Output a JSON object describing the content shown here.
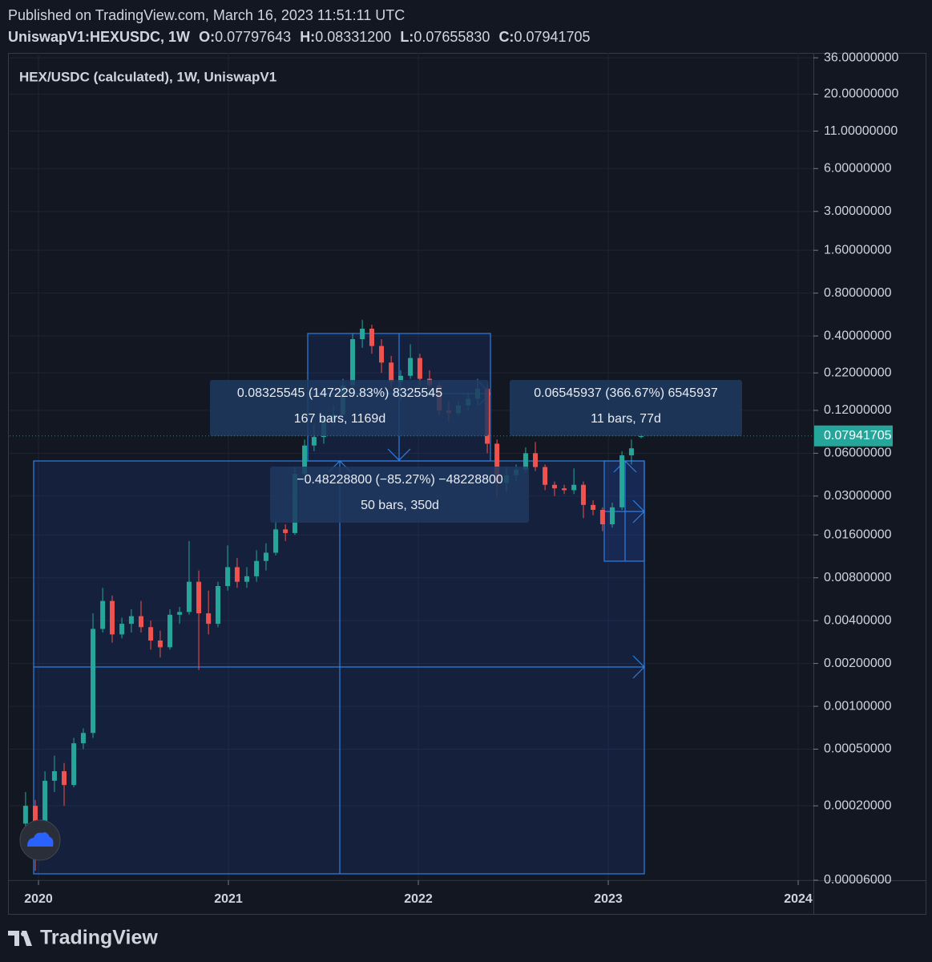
{
  "chart_data": {
    "type": "candlestick",
    "published": "Published on TradingView.com, March 16, 2023 11:51:11 UTC",
    "symbol": "UniswapV1:HEXUSDC, 1W",
    "ohlc": [
      {
        "label": "O:",
        "value": "0.07797643"
      },
      {
        "label": "H:",
        "value": "0.08331200"
      },
      {
        "label": "L:",
        "value": "0.07655830"
      },
      {
        "label": "C:",
        "value": "0.07941705"
      }
    ],
    "title": "HEX/USDC (calculated), 1W, UniswapV1",
    "brand": "TradingView",
    "measures": [
      {
        "line1": "0.08325545 (147229.83%) 8325545",
        "line2": "167 bars, 1169d"
      },
      {
        "line1": "0.06545937 (366.67%) 6545937",
        "line2": "11 bars, 77d"
      },
      {
        "line1": "−0.48228800 (−85.27%) −48228800",
        "line2": "50 bars, 350d"
      }
    ],
    "up_color": "#26a69a",
    "down_color": "#ef5350",
    "log_scale": true,
    "grid": true,
    "last_price": 0.07941705,
    "xlim": [
      2019.848,
      2024.08
    ],
    "xticks": [
      2020,
      2021,
      2022,
      2023,
      2024
    ],
    "ylim": [
      6e-05,
      37
    ],
    "yticks": [
      {
        "value": 36,
        "label": "36.00000000"
      },
      {
        "value": 20,
        "label": "20.00000000"
      },
      {
        "value": 11,
        "label": "11.00000000"
      },
      {
        "value": 6,
        "label": "6.00000000"
      },
      {
        "value": 3,
        "label": "3.00000000"
      },
      {
        "value": 1.6,
        "label": "1.60000000"
      },
      {
        "value": 0.8,
        "label": "0.80000000"
      },
      {
        "value": 0.4,
        "label": "0.40000000"
      },
      {
        "value": 0.22,
        "label": "0.22000000"
      },
      {
        "value": 0.12,
        "label": "0.12000000"
      },
      {
        "value": 0.06,
        "label": "0.06000000"
      },
      {
        "value": 0.03,
        "label": "0.03000000"
      },
      {
        "value": 0.016,
        "label": "0.01600000"
      },
      {
        "value": 0.008,
        "label": "0.00800000"
      },
      {
        "value": 0.004,
        "label": "0.00400000"
      },
      {
        "value": 0.002,
        "label": "0.00200000"
      },
      {
        "value": 0.001,
        "label": "0.00100000"
      },
      {
        "value": 0.0005,
        "label": "0.00050000"
      },
      {
        "value": 0.0002,
        "label": "0.00020000"
      },
      {
        "value": 6e-05,
        "label": "0.00006000"
      }
    ],
    "x": [
      2019.932,
      2019.983,
      2020.034,
      2020.084,
      2020.135,
      2020.186,
      2020.236,
      2020.287,
      2020.338,
      2020.388,
      2020.439,
      2020.489,
      2020.54,
      2020.591,
      2020.641,
      2020.692,
      2020.743,
      2020.793,
      2020.844,
      2020.895,
      2020.945,
      2020.996,
      2021.046,
      2021.097,
      2021.148,
      2021.198,
      2021.249,
      2021.3,
      2021.35,
      2021.401,
      2021.451,
      2021.502,
      2021.553,
      2021.603,
      2021.654,
      2021.705,
      2021.755,
      2021.806,
      2021.857,
      2021.907,
      2021.958,
      2022.008,
      2022.059,
      2022.11,
      2022.16,
      2022.211,
      2022.262,
      2022.312,
      2022.363,
      2022.414,
      2022.464,
      2022.515,
      2022.565,
      2022.616,
      2022.667,
      2022.717,
      2022.768,
      2022.819,
      2022.869,
      2022.92,
      2022.97,
      2023.021,
      2023.072,
      2023.122,
      2023.173
    ],
    "open": [
      0.00015,
      0.0002,
      0.00012,
      0.0003,
      0.00035,
      0.00028,
      0.00055,
      0.00065,
      0.0035,
      0.0055,
      0.0032,
      0.0038,
      0.0043,
      0.0036,
      0.0029,
      0.0026,
      0.0044,
      0.0046,
      0.0075,
      0.0045,
      0.0038,
      0.007,
      0.0095,
      0.0075,
      0.0082,
      0.0105,
      0.012,
      0.0175,
      0.0165,
      0.043,
      0.068,
      0.078,
      0.105,
      0.112,
      0.18,
      0.38,
      0.45,
      0.34,
      0.26,
      0.19,
      0.21,
      0.28,
      0.2,
      0.18,
      0.12,
      0.115,
      0.13,
      0.145,
      0.17,
      0.07,
      0.037,
      0.042,
      0.046,
      0.06,
      0.048,
      0.036,
      0.034,
      0.033,
      0.036,
      0.026,
      0.024,
      0.019,
      0.025,
      0.058,
      0.07797643
    ],
    "high": [
      0.00025,
      0.00022,
      0.00035,
      0.00045,
      0.0004,
      0.0006,
      0.0007,
      0.0045,
      0.0068,
      0.006,
      0.0042,
      0.0048,
      0.0055,
      0.004,
      0.0034,
      0.0048,
      0.005,
      0.0145,
      0.009,
      0.0065,
      0.0075,
      0.0135,
      0.011,
      0.0095,
      0.0125,
      0.014,
      0.02,
      0.019,
      0.048,
      0.075,
      0.095,
      0.11,
      0.13,
      0.2,
      0.42,
      0.52,
      0.48,
      0.38,
      0.29,
      0.23,
      0.35,
      0.3,
      0.23,
      0.19,
      0.14,
      0.14,
      0.16,
      0.2,
      0.18,
      0.075,
      0.048,
      0.05,
      0.066,
      0.072,
      0.05,
      0.038,
      0.036,
      0.047,
      0.038,
      0.028,
      0.025,
      0.027,
      0.062,
      0.075,
      0.083312
    ],
    "low": [
      0.0001,
      7e-05,
      0.0001,
      0.00025,
      0.0002,
      0.00027,
      0.0005,
      0.0006,
      0.0033,
      0.0028,
      0.003,
      0.0033,
      0.0033,
      0.0025,
      0.0022,
      0.0025,
      0.0038,
      0.0044,
      0.0018,
      0.0032,
      0.0036,
      0.0065,
      0.0068,
      0.0068,
      0.0075,
      0.009,
      0.0115,
      0.0145,
      0.016,
      0.04,
      0.062,
      0.07,
      0.095,
      0.108,
      0.17,
      0.33,
      0.3,
      0.22,
      0.17,
      0.14,
      0.2,
      0.18,
      0.16,
      0.11,
      0.1,
      0.11,
      0.12,
      0.13,
      0.06,
      0.03,
      0.032,
      0.038,
      0.044,
      0.045,
      0.033,
      0.03,
      0.031,
      0.031,
      0.021,
      0.022,
      0.017,
      0.018,
      0.024,
      0.05,
      0.0765583
    ],
    "close": [
      0.0002,
      0.00012,
      0.0003,
      0.00035,
      0.00028,
      0.00055,
      0.00065,
      0.0035,
      0.0055,
      0.0032,
      0.0038,
      0.0043,
      0.0036,
      0.0029,
      0.0026,
      0.0044,
      0.0046,
      0.0075,
      0.0045,
      0.0038,
      0.007,
      0.0095,
      0.0075,
      0.0082,
      0.0105,
      0.012,
      0.0175,
      0.0165,
      0.043,
      0.068,
      0.078,
      0.105,
      0.112,
      0.18,
      0.38,
      0.45,
      0.34,
      0.26,
      0.19,
      0.21,
      0.28,
      0.2,
      0.18,
      0.12,
      0.115,
      0.13,
      0.145,
      0.17,
      0.07,
      0.037,
      0.042,
      0.046,
      0.06,
      0.048,
      0.036,
      0.034,
      0.033,
      0.036,
      0.026,
      0.024,
      0.019,
      0.025,
      0.058,
      0.065,
      0.07941705
    ]
  }
}
